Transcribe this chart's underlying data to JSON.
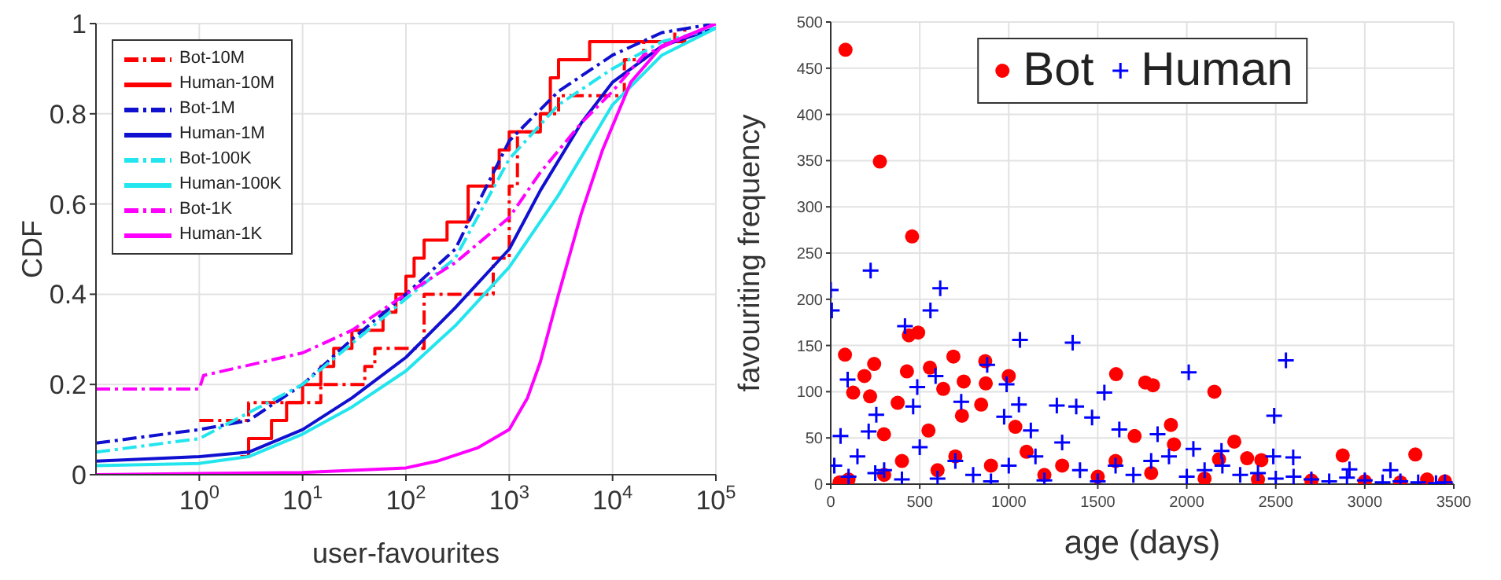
{
  "chart_data": [
    {
      "type": "line",
      "xlabel": "user-favourites",
      "ylabel": "CDF",
      "log": "x",
      "grid": true,
      "legend": "top left",
      "xlim": [
        0.1,
        100000
      ],
      "xticks": [
        {
          "value": 1,
          "label": "10$^{0}$"
        },
        {
          "value": 10,
          "label": "10$^{1}$"
        },
        {
          "value": 100,
          "label": "10$^{2}$"
        },
        {
          "value": 1000,
          "label": "10$^{3}$"
        },
        {
          "value": 10000,
          "label": "10$^{4}$"
        },
        {
          "value": 100000,
          "label": "10$^{5}$"
        }
      ],
      "ylim": [
        0,
        1
      ],
      "yticks": [
        0,
        0.2,
        0.4,
        0.6,
        0.8,
        1
      ],
      "series": [
        {
          "name": "Bot-10M",
          "type": "step",
          "line_style": "dashed",
          "color": "#ff0000",
          "x": [
            1,
            3,
            15,
            40,
            50,
            150,
            700,
            1000,
            1200,
            2000,
            3000,
            13000,
            20000,
            50000
          ],
          "values": [
            0.12,
            0.16,
            0.2,
            0.24,
            0.28,
            0.4,
            0.48,
            0.64,
            0.76,
            0.8,
            0.84,
            0.92,
            0.96,
            1
          ]
        },
        {
          "name": "Human-10M",
          "type": "step",
          "line_style": "solid",
          "color": "#ff0000",
          "x": [
            2.5,
            3,
            5,
            7,
            10,
            15,
            20,
            30,
            60,
            80,
            100,
            120,
            150,
            250,
            400,
            700,
            800,
            1000,
            2000,
            2500,
            3000,
            6000,
            40000
          ],
          "values": [
            0.04,
            0.08,
            0.12,
            0.16,
            0.2,
            0.24,
            0.28,
            0.32,
            0.36,
            0.4,
            0.44,
            0.48,
            0.52,
            0.56,
            0.64,
            0.68,
            0.72,
            0.76,
            0.8,
            0.88,
            0.92,
            0.96,
            0.98
          ]
        },
        {
          "name": "Bot-1M",
          "line_style": "dashed",
          "color": "#1010d0",
          "x": [
            0.1,
            1,
            3,
            10,
            30,
            100,
            300,
            1000,
            3000,
            10000,
            30000,
            100000
          ],
          "values": [
            0.07,
            0.1,
            0.12,
            0.2,
            0.3,
            0.4,
            0.5,
            0.74,
            0.85,
            0.93,
            0.98,
            1
          ]
        },
        {
          "name": "Human-1M",
          "line_style": "solid",
          "color": "#1010d0",
          "x": [
            0.1,
            1,
            3,
            10,
            30,
            100,
            300,
            1000,
            2000,
            5000,
            10000,
            30000,
            100000
          ],
          "values": [
            0.03,
            0.04,
            0.05,
            0.1,
            0.17,
            0.26,
            0.37,
            0.5,
            0.63,
            0.78,
            0.87,
            0.95,
            0.99
          ]
        },
        {
          "name": "Bot-100K",
          "line_style": "dashed",
          "color": "#22e5ee",
          "x": [
            0.1,
            1,
            10,
            100,
            300,
            1000,
            3000,
            10000,
            30000,
            100000
          ],
          "values": [
            0.05,
            0.08,
            0.2,
            0.39,
            0.48,
            0.7,
            0.82,
            0.9,
            0.96,
            0.99
          ]
        },
        {
          "name": "Human-100K",
          "line_style": "solid",
          "color": "#22e5ee",
          "x": [
            0.1,
            1,
            3,
            10,
            30,
            100,
            300,
            1000,
            3000,
            10000,
            30000,
            100000
          ],
          "values": [
            0.02,
            0.025,
            0.04,
            0.09,
            0.15,
            0.23,
            0.33,
            0.46,
            0.62,
            0.82,
            0.93,
            0.99
          ]
        },
        {
          "name": "Bot-1K",
          "line_style": "dashed",
          "color": "#ff00ff",
          "x": [
            0.1,
            1,
            1.1,
            10,
            30,
            100,
            300,
            1000,
            2000,
            5000,
            10000,
            20000,
            100000
          ],
          "values": [
            0.19,
            0.19,
            0.22,
            0.27,
            0.32,
            0.4,
            0.47,
            0.57,
            0.67,
            0.78,
            0.85,
            0.93,
            1
          ]
        },
        {
          "name": "Human-1K",
          "line_style": "solid",
          "color": "#ff00ff",
          "x": [
            0.1,
            10,
            100,
            200,
            500,
            1000,
            1500,
            2000,
            3000,
            5000,
            8000,
            15000,
            30000,
            100000
          ],
          "values": [
            0,
            0.005,
            0.015,
            0.03,
            0.06,
            0.1,
            0.17,
            0.25,
            0.4,
            0.58,
            0.72,
            0.87,
            0.95,
            1
          ]
        }
      ]
    },
    {
      "type": "scatter",
      "xlabel": "age (days)",
      "ylabel": "favouriting frequency",
      "grid": true,
      "legend": "top",
      "xlim": [
        0,
        3500
      ],
      "xticks": [
        0,
        500,
        1000,
        1500,
        2000,
        2500,
        3000,
        3500
      ],
      "ylim": [
        0,
        500
      ],
      "yticks": [
        0,
        50,
        100,
        150,
        200,
        250,
        300,
        350,
        400,
        450,
        500
      ],
      "series": [
        {
          "name": "Bot",
          "marker": "circle",
          "color": "#ff0000",
          "x": [
            83,
            276,
            457,
            80,
            244,
            189,
            221,
            126,
            439,
            491,
            428,
            376,
            557,
            632,
            689,
            747,
            868,
            871,
            845,
            737,
            1000,
            1603,
            1767,
            1810,
            2155,
            1911,
            1928,
            2267,
            2876,
            3284,
            1037,
            1707,
            299,
            549,
            2419,
            2339,
            2181,
            100,
            300,
            600,
            900,
            1200,
            1500,
            1800,
            2100,
            2400,
            2700,
            3000,
            3200,
            3350,
            3450,
            50,
            400,
            700,
            1100,
            1300,
            1600
          ],
          "values": [
            470,
            349,
            268,
            140,
            130,
            117,
            95,
            99,
            161,
            164,
            122,
            88,
            126,
            103,
            138,
            111,
            133,
            109,
            86,
            74,
            117,
            119,
            110,
            107,
            100,
            64,
            43,
            46,
            31,
            32,
            62,
            52,
            54,
            58,
            26,
            28,
            27,
            5,
            10,
            15,
            20,
            10,
            8,
            12,
            6,
            5,
            4,
            3,
            2,
            5,
            3,
            2,
            25,
            30,
            35,
            20,
            25
          ]
        },
        {
          "name": "Human",
          "marker": "cross",
          "color": "#0000ff",
          "x": [
            0,
            6,
            224,
            615,
            560,
            417,
            1063,
            1359,
            2557,
            2011,
            1537,
            95,
            486,
            589,
            879,
            988,
            1057,
            1270,
            1379,
            1468,
            2491,
            256,
            463,
            733,
            974,
            1124,
            1621,
            1836,
            55,
            213,
            2037,
            2195,
            2598,
            2486,
            3144,
            2914,
            20,
            150,
            300,
            500,
            700,
            800,
            1000,
            1150,
            1300,
            1400,
            1600,
            1700,
            1800,
            1900,
            2000,
            2100,
            2200,
            2300,
            2400,
            2500,
            2600,
            2700,
            2800,
            2900,
            3000,
            3100,
            3200,
            3300,
            3400,
            3450,
            100,
            250,
            400,
            600,
            900,
            1200,
            1500
          ],
          "values": [
            210,
            188,
            231,
            212,
            188,
            171,
            156,
            153,
            134,
            121,
            99,
            113,
            105,
            117,
            129,
            108,
            86,
            85,
            84,
            72,
            74,
            75,
            84,
            89,
            73,
            58,
            59,
            54,
            52,
            57,
            38,
            36,
            29,
            30,
            15,
            16,
            20,
            30,
            15,
            40,
            25,
            10,
            20,
            30,
            45,
            15,
            20,
            10,
            25,
            30,
            8,
            15,
            20,
            10,
            12,
            6,
            8,
            5,
            3,
            7,
            4,
            2,
            3,
            2,
            1,
            2,
            8,
            12,
            5,
            6,
            3,
            4,
            3
          ]
        }
      ]
    }
  ]
}
